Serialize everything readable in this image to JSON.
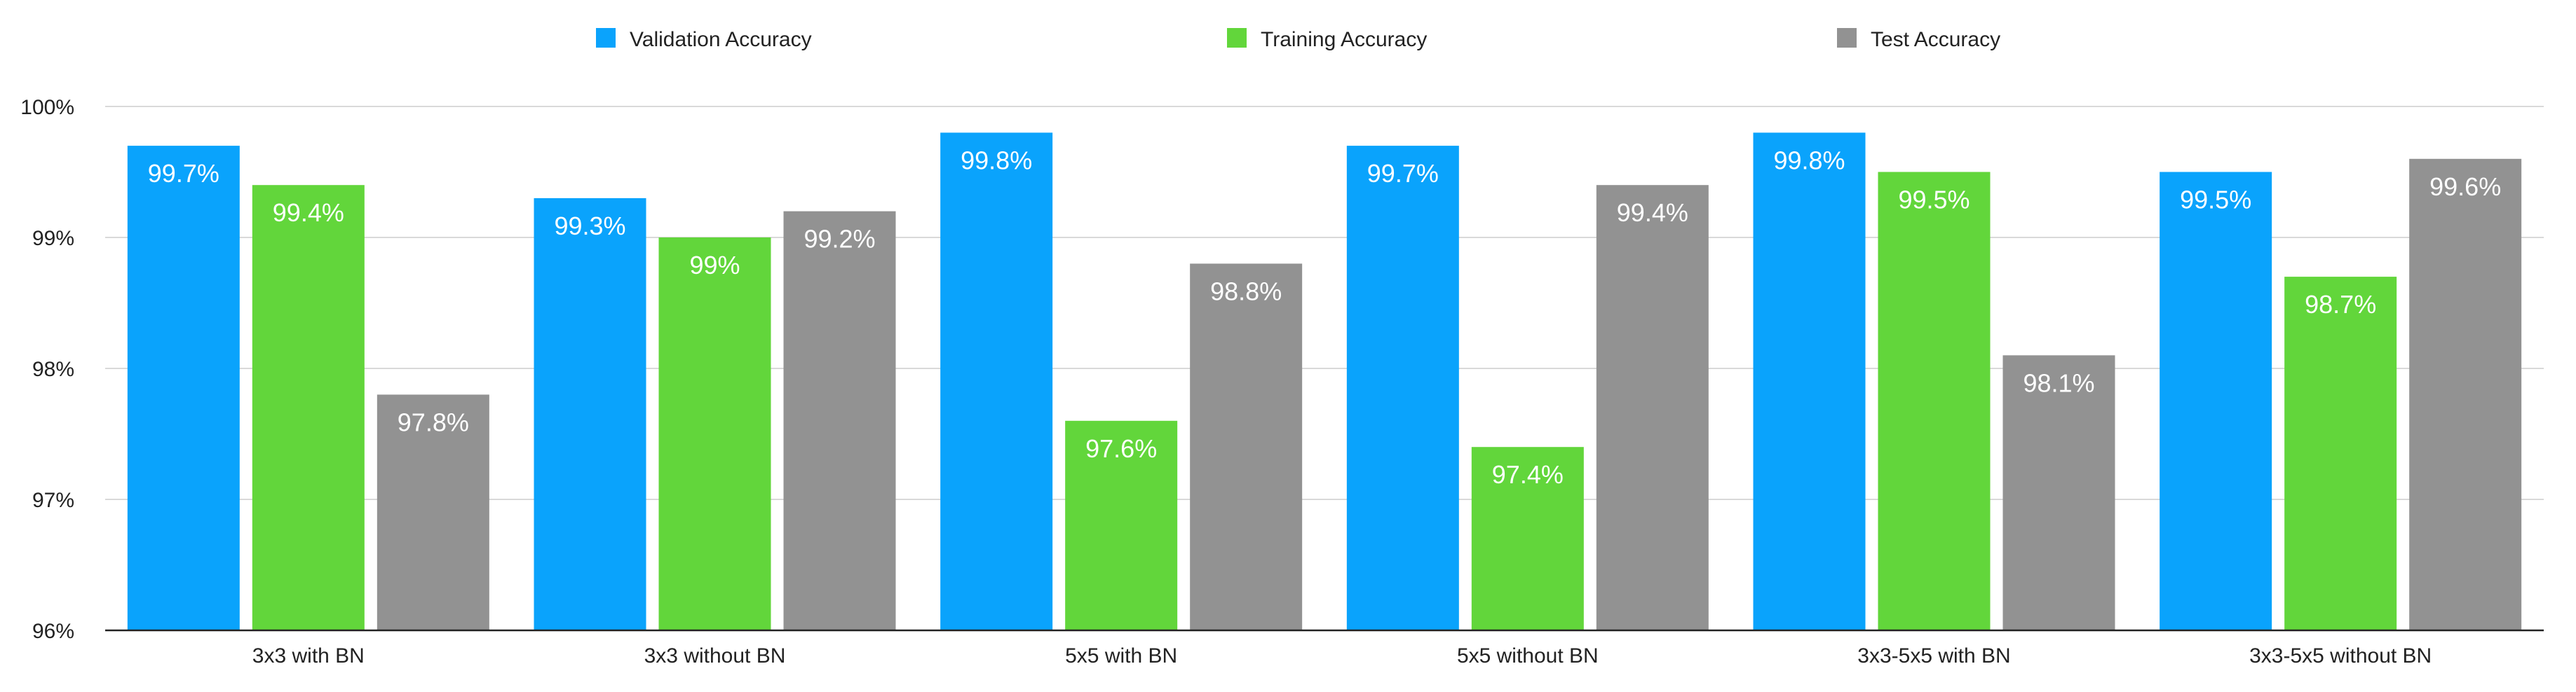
{
  "chart_data": {
    "type": "bar",
    "title": "",
    "xlabel": "",
    "ylabel": "",
    "categories": [
      "3x3 with BN",
      "3x3 without BN",
      "5x5 with BN",
      "5x5 without BN",
      "3x3-5x5 with BN",
      "3x3-5x5 without BN"
    ],
    "series": [
      {
        "name": "Validation Accuracy",
        "color": "#0aa3fc",
        "values": [
          99.7,
          99.3,
          99.8,
          99.7,
          99.8,
          99.5
        ],
        "labels": [
          "99.7%",
          "99.3%",
          "99.8%",
          "99.7%",
          "99.8%",
          "99.5%"
        ]
      },
      {
        "name": "Training Accuracy",
        "color": "#62d63b",
        "values": [
          99.4,
          99.0,
          97.6,
          97.4,
          99.5,
          98.7
        ],
        "labels": [
          "99.4%",
          "99%",
          "97.6%",
          "97.4%",
          "99.5%",
          "98.7%"
        ]
      },
      {
        "name": "Test Accuracy",
        "color": "#929292",
        "values": [
          97.8,
          99.2,
          98.8,
          99.4,
          98.1,
          99.6
        ],
        "labels": [
          "97.8%",
          "99.2%",
          "98.8%",
          "99.4%",
          "98.1%",
          "99.6%"
        ]
      }
    ],
    "ylim": [
      96,
      100
    ],
    "yticks": [
      96,
      97,
      98,
      99,
      100
    ],
    "ytick_labels": [
      "96%",
      "97%",
      "98%",
      "99%",
      "100%"
    ],
    "grid": true,
    "legend_position": "top-center"
  }
}
